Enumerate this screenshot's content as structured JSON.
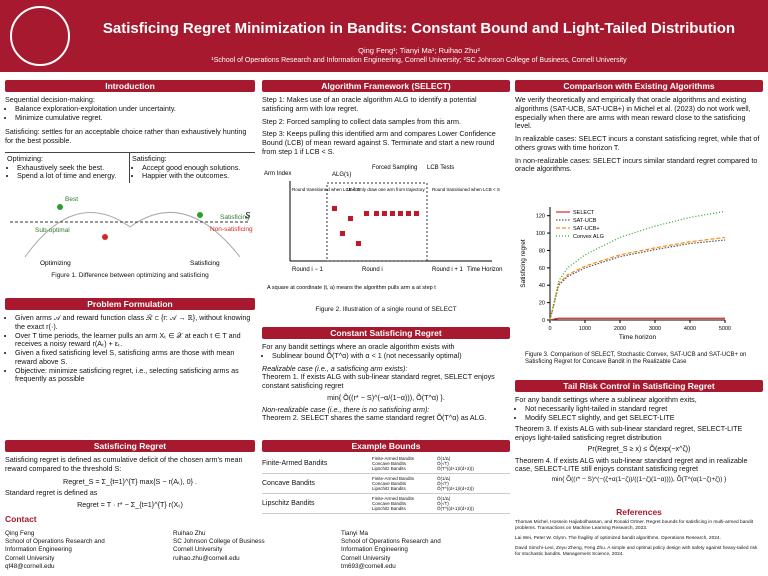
{
  "header": {
    "title": "Satisficing Regret Minimization in Bandits: Constant Bound and Light-Tailed Distribution",
    "authors": "Qing Feng¹; Tianyi Ma¹; Ruihao Zhu²",
    "affiliations": "¹School of Operations Research and Information Engineering, Cornell University; ²SC Johnson College of Business, Cornell University"
  },
  "intro": {
    "heading": "Introduction",
    "lead": "Sequential decision-making:",
    "bullets": [
      "Balance exploration-exploitation under uncertainty.",
      "Minimize cumulative regret."
    ],
    "para": "Satisficing: settles for an acceptable choice rather than exhaustively hunting for the best possible.",
    "opt_head": "Optimizing:",
    "opt_bullets": [
      "Exhaustively seek the best.",
      "Spend a lot of time and energy."
    ],
    "sat_head": "Satisficing:",
    "sat_bullets": [
      "Accept good enough solutions.",
      "Happier with the outcomes."
    ],
    "fig_labels": [
      "Best",
      "Sub-optimal",
      "Satisficing",
      "Non-satisficing",
      "S",
      "Optimizing",
      "Satisficing"
    ],
    "caption": "Figure 1. Difference between optimizing and satisficing"
  },
  "problem": {
    "heading": "Problem Formulation",
    "bullets": [
      "Given arms 𝒜 and reward function class ℛ ⊂ {r: 𝒜 → ℝ}, without knowing the exact r(·).",
      "Over T time periods, the learner pulls an arm Xₜ ∈ 𝒳 at each t ∈ T and receives a noisy reward r(Aₜ) + εₜ.",
      "Given a fixed satisficing level S, satisficing arms are those with mean reward above S.",
      "Objective: minimize satisficing regret, i.e., selecting satisficing arms as frequently as possible"
    ]
  },
  "sat_regret": {
    "heading": "Satisficing Regret",
    "text": "Satisficing regret is defined as cumulative deficit of the chosen arm's mean reward compared to the threshold S:",
    "formula1": "Regret_S = Σ_{t=1}^{T} max{S − r(Aₜ), 0} .",
    "text2": "Standard regret is defined as",
    "formula2": "Regret = T · r* − Σ_{t=1}^{T} r(Xₜ)"
  },
  "algo": {
    "heading": "Algorithm Framework (SELECT)",
    "steps": [
      "Step 1: Makes use of an oracle algorithm ALG to identify a potential satisficing arm with low regret.",
      "Step 2: Forced sampling to collect data samples from this arm.",
      "Step 3: Keeps pulling this identified arm and compares Lower Confidence Bound (LCB) of mean reward against S. Terminate and start a new round from step 1 if LCB < S."
    ],
    "fig_labels": [
      "ALG(τᵢ)",
      "Forced Sampling",
      "LCB Tests",
      "Arm Index",
      "Round transitioned when LCB < S",
      "Uniformly draw one arm from trajectory",
      "Round transitioned when LCB < S",
      "Round i − 1",
      "Round i",
      "Round i + 1",
      "Time Horizon",
      "A square at coordinate (t, a) means the algorithm pulls arm a at step t"
    ],
    "caption": "Figure 2. Illustration of a single round of SELECT"
  },
  "constant": {
    "heading": "Constant Satisficing Regret",
    "lead": "For any bandit settings where an oracle algorithm exists with",
    "bullet": "Sublinear bound Õ(T^α) with α < 1 (not necessarily optimal)",
    "case1": "Realizable case (i.e., a satisficing arm exists):",
    "thm1": "Theorem 1. If exists ALG with sub-linear standard regret, SELECT enjoys constant satisficing regret",
    "formula": "min{ Õ((r* − S)^(−α/(1−α))), Õ(T^α) }.",
    "case2": "Non-realizable case (i.e., there is no satisficing arm):",
    "thm2": "Theorem 2. SELECT shares the same standard regret Õ(T^α) as ALG."
  },
  "examples": {
    "heading": "Example Bounds",
    "rows": [
      {
        "name": "Finite-Armed Bandits",
        "cells": [
          [
            "Finite-Armed Bandits",
            "Õ(1/Δ)"
          ],
          [
            "Concave Bandits",
            "Õ(√T)"
          ],
          [
            "Lipschitz Bandits",
            "Õ(T^((d+1)/(d+2)))"
          ]
        ]
      },
      {
        "name": "Concave Bandits",
        "cells": [
          [
            "Finite-Armed Bandits",
            "Õ(1/Δ)"
          ],
          [
            "Concave Bandits",
            "Õ(√T)"
          ],
          [
            "Lipschitz Bandits",
            "Õ(T^((d+1)/(d+2)))"
          ]
        ]
      },
      {
        "name": "Lipschitz Bandits",
        "cells": [
          [
            "Finite-Armed Bandits",
            "Õ(1/Δ)"
          ],
          [
            "Concave Bandits",
            "Õ(√T)"
          ],
          [
            "Lipschitz Bandits",
            "Õ(T^((d+1)/(d+2)))"
          ]
        ]
      }
    ]
  },
  "comparison": {
    "heading": "Comparison with Existing Algorithms",
    "paras": [
      "We verify theoretically and empirically that oracle algorithms and existing algorithms (SAT-UCB, SAT-UCB+) in Michel et al. (2023) do not work well, especially when there are arms with mean reward close to the satisficing level.",
      "In realizable cases: SELECT incurs a constant satisficing regret, while that of others grows with time horizon T.",
      "In non-realizable cases: SELECT incurs similar standard regret compared to oracle algorithms."
    ],
    "caption": "Figure 3. Comparison of SELECT, Stochastic Convex, SAT-UCB and SAT-UCB+ on Satisficing Regret for Concave Bandit in the Realizable Case"
  },
  "chart_data": {
    "type": "line",
    "x_label": "Time horizon",
    "y_label": "Satisficing regret",
    "x": [
      0,
      250,
      500,
      1000,
      2000,
      3000,
      4000,
      5000
    ],
    "series": [
      {
        "name": "SELECT",
        "color": "#d62728",
        "dash": "",
        "values": [
          0,
          2,
          2,
          2,
          2,
          2,
          2,
          2
        ]
      },
      {
        "name": "SAT-UCB",
        "color": "#555555",
        "dash": "1.5,1.5",
        "values": [
          0,
          40,
          50,
          60,
          73,
          81,
          88,
          92
        ]
      },
      {
        "name": "SAT-UCB+",
        "color": "#ff8c1a",
        "dash": "4,2",
        "values": [
          0,
          42,
          52,
          62,
          75,
          83,
          90,
          95
        ]
      },
      {
        "name": "Convex ALG",
        "color": "#2ca02c",
        "dash": "1,2",
        "values": [
          0,
          45,
          60,
          75,
          95,
          108,
          118,
          125
        ]
      }
    ],
    "xlim": [
      0,
      5000
    ],
    "xticks": [
      0,
      1000,
      2000,
      3000,
      4000,
      5000
    ],
    "ylim": [
      0,
      130
    ],
    "yticks": [
      0,
      20,
      40,
      60,
      80,
      100,
      120
    ],
    "legend": "upper-left"
  },
  "tail": {
    "heading": "Tail Risk Control in Satisficing Regret",
    "lead": "For any bandit settings where a sublinear algorithm exits,",
    "bullets": [
      "Not necessarily light-tailed in standard regret",
      "Modify SELECT slightly, and get SELECT-LITE"
    ],
    "thm3": "Theorem 3. If exists ALG with sub-linear standard regret, SELECT-LITE enjoys light-tailed satisficing regret distribution",
    "formula3": "Pr(Regret_S ≥ x) ≤ Õ(exp(−x^ζ))",
    "thm4": "Theorem 4. If exists ALG with sub-linear standard regret and in realizable case, SELECT-LITE still enjoys constant satisficing regret",
    "formula4": "min{ Õ((r* − S)^(−(ζ+α(1−ζ))/((1−ζ)(1−α)))), Õ(T^(α(1−ζ)+ζ)) }"
  },
  "contact": {
    "heading": "Contact",
    "people": [
      [
        "Qing Feng",
        "School of Operations Research and",
        "Information Engineering",
        "Cornell University",
        "qf48@cornell.edu"
      ],
      [
        "Ruihao Zhu",
        "SC Johnson College of Business",
        "Cornell University",
        "ruihao.zhu@cornell.edu"
      ],
      [
        "Tianyi Ma",
        "School of Operations Research and",
        "Information Engineering",
        "Cornell University",
        "tm693@cornell.edu"
      ]
    ]
  },
  "references": {
    "heading": "References",
    "items": [
      "Thomas Michel, Hossein Hajiabolhassan, and Ronald Ortner. Regret bounds for satisficing in multi-armed bandit problems. Transactions on Machine Learning Research, 2023.",
      "Lai Wei, Peter W. Glynn. The fragility of optimized bandit algorithms. Operations Research, 2024.",
      "David Simchi-Levi, Zeyu Zheng, Feng Zhu. A simple and optimal policy design with safety against heavy-tailed risk for stochastic bandits. Management Science, 2024."
    ]
  }
}
